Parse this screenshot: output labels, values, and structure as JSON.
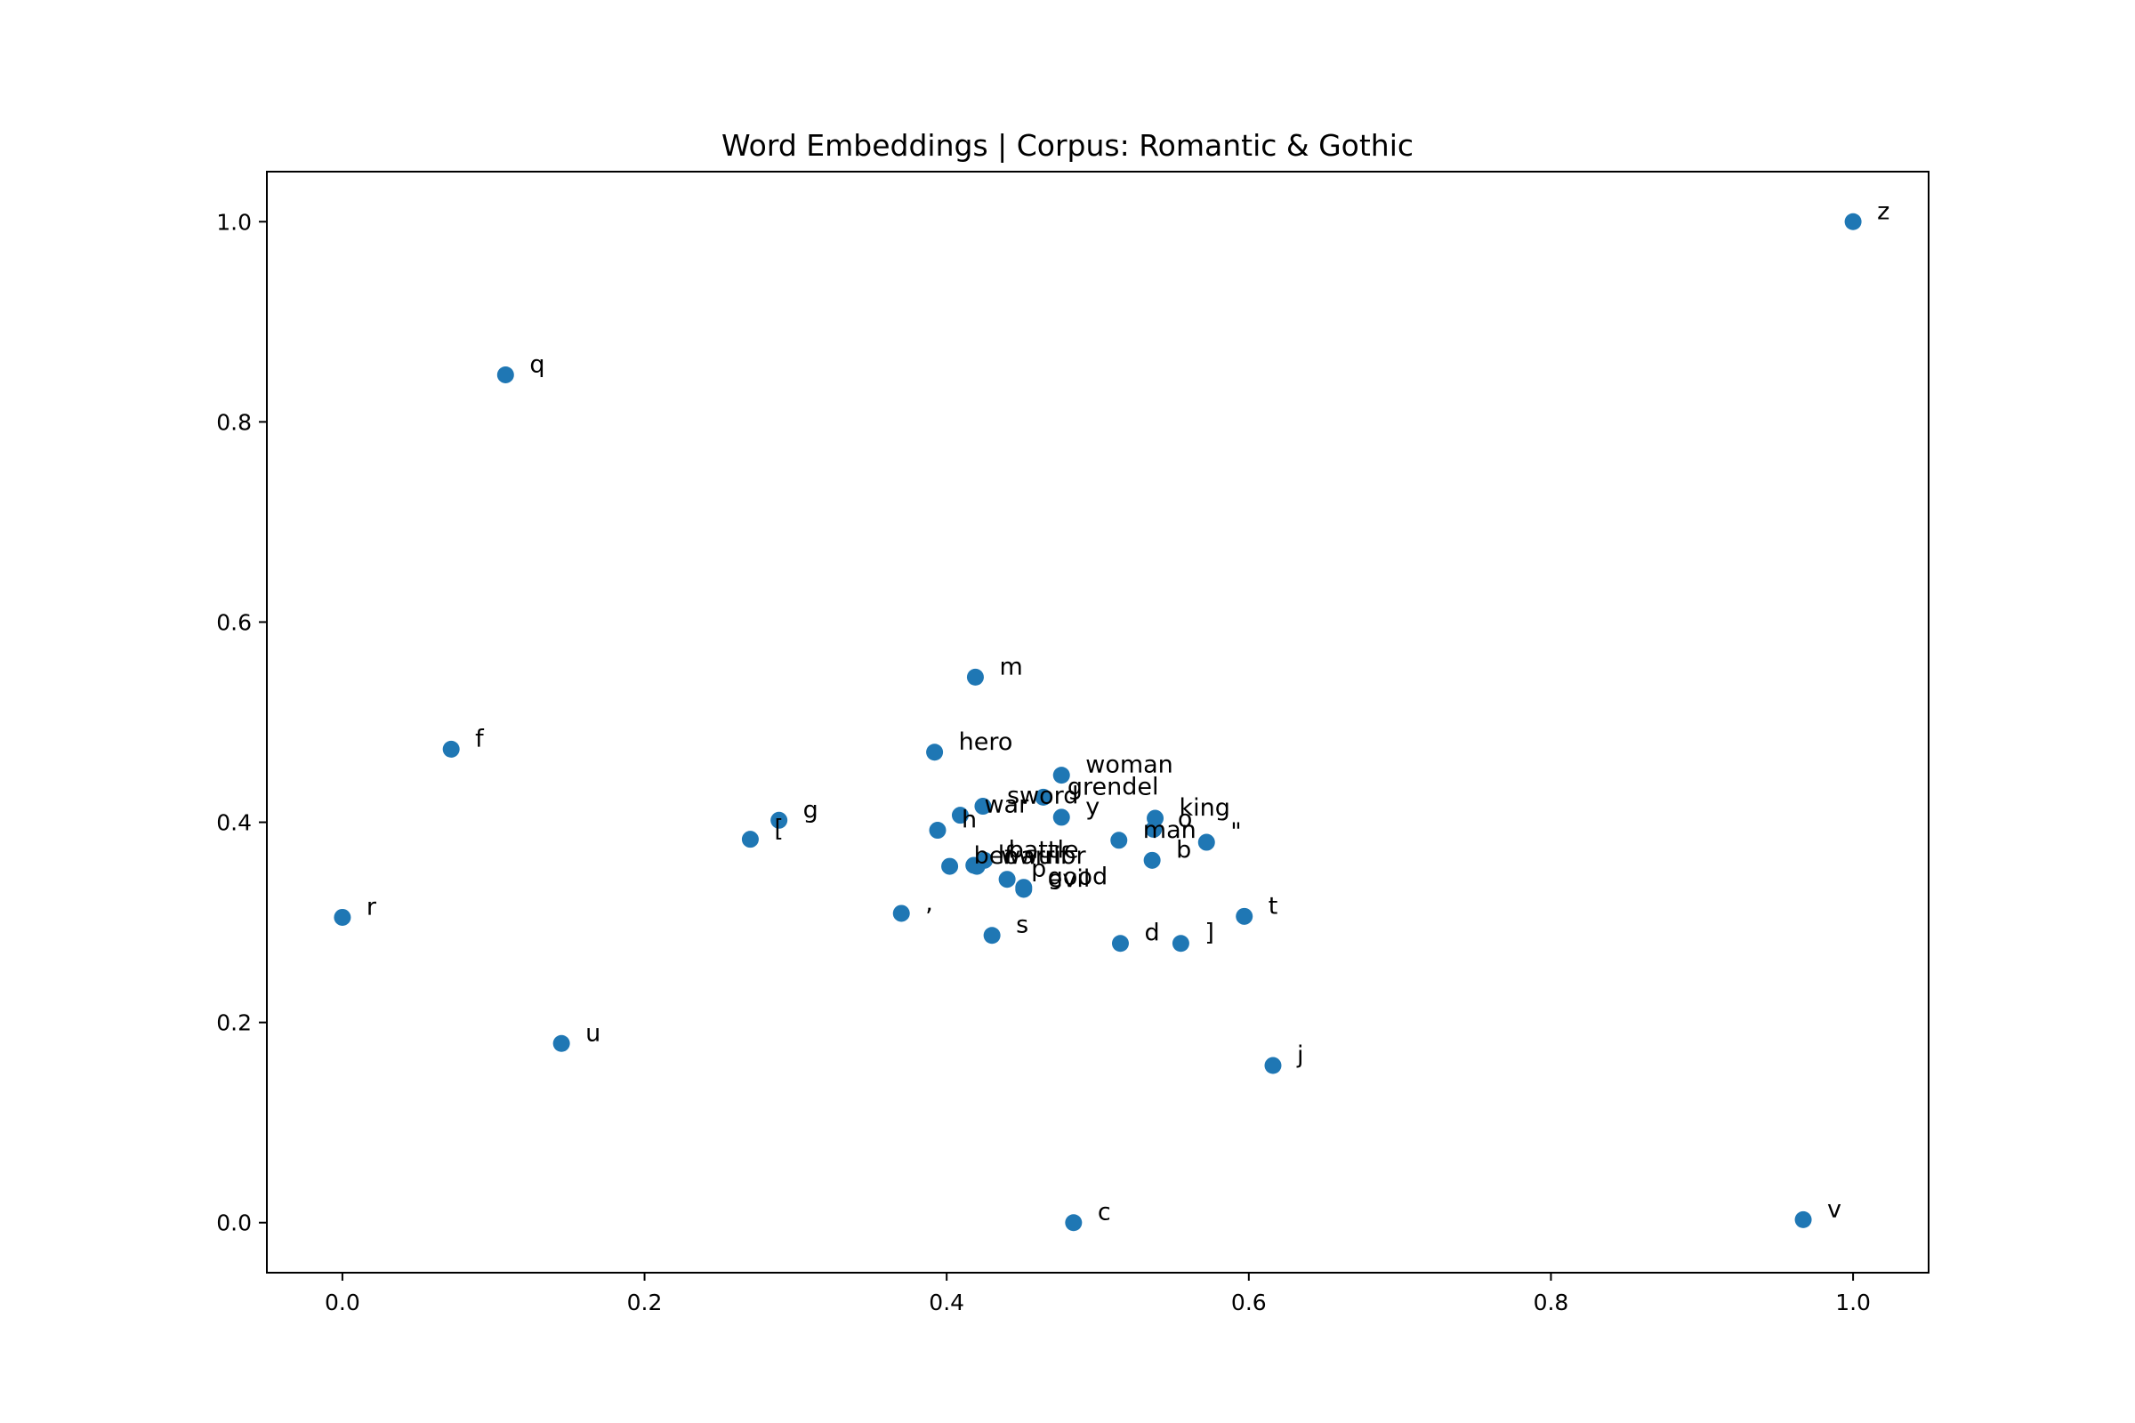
{
  "chart_data": {
    "type": "scatter",
    "title": "Word Embeddings | Corpus: Romantic & Gothic",
    "xlabel": "",
    "ylabel": "",
    "xlim": [
      -0.05,
      1.05
    ],
    "ylim": [
      -0.05,
      1.05
    ],
    "grid": false,
    "color": "#1f77b4",
    "x_ticks": [
      "0.0",
      "0.2",
      "0.4",
      "0.6",
      "0.8",
      "1.0"
    ],
    "y_ticks": [
      "0.0",
      "0.2",
      "0.4",
      "0.6",
      "0.8",
      "1.0"
    ],
    "points": [
      {
        "label": "z",
        "x": 1.0,
        "y": 1.0
      },
      {
        "label": "q",
        "x": 0.108,
        "y": 0.847
      },
      {
        "label": "m",
        "x": 0.419,
        "y": 0.545
      },
      {
        "label": "f",
        "x": 0.072,
        "y": 0.473
      },
      {
        "label": "hero",
        "x": 0.392,
        "y": 0.47
      },
      {
        "label": "woman",
        "x": 0.476,
        "y": 0.447
      },
      {
        "label": "sword",
        "x": 0.424,
        "y": 0.416
      },
      {
        "label": "grendel",
        "x": 0.464,
        "y": 0.425
      },
      {
        "label": "king",
        "x": 0.538,
        "y": 0.404
      },
      {
        "label": "o",
        "x": 0.537,
        "y": 0.393
      },
      {
        "label": "g",
        "x": 0.289,
        "y": 0.402
      },
      {
        "label": "h",
        "x": 0.394,
        "y": 0.392
      },
      {
        "label": "[",
        "x": 0.27,
        "y": 0.383
      },
      {
        "label": "war",
        "x": 0.409,
        "y": 0.407
      },
      {
        "label": "y",
        "x": 0.476,
        "y": 0.405
      },
      {
        "label": "man",
        "x": 0.514,
        "y": 0.382
      },
      {
        "label": "\"",
        "x": 0.572,
        "y": 0.38
      },
      {
        "label": "b",
        "x": 0.536,
        "y": 0.362
      },
      {
        "label": "beowulf",
        "x": 0.402,
        "y": 0.356
      },
      {
        "label": "lf",
        "x": 0.418,
        "y": 0.357
      },
      {
        "label": "battle",
        "x": 0.425,
        "y": 0.362
      },
      {
        "label": "p",
        "x": 0.44,
        "y": 0.343
      },
      {
        "label": "good",
        "x": 0.451,
        "y": 0.335
      },
      {
        "label": "r",
        "x": 0.0,
        "y": 0.305
      },
      {
        "label": ",",
        "x": 0.37,
        "y": 0.309
      },
      {
        "label": "warrior",
        "x": 0.42,
        "y": 0.356
      },
      {
        "label": "evil",
        "x": 0.451,
        "y": 0.333
      },
      {
        "label": "t",
        "x": 0.597,
        "y": 0.306
      },
      {
        "label": "s",
        "x": 0.43,
        "y": 0.287
      },
      {
        "label": "d",
        "x": 0.515,
        "y": 0.279
      },
      {
        "label": "]",
        "x": 0.555,
        "y": 0.279
      },
      {
        "label": "u",
        "x": 0.145,
        "y": 0.179
      },
      {
        "label": "j",
        "x": 0.616,
        "y": 0.157
      },
      {
        "label": "c",
        "x": 0.484,
        "y": 0.0
      },
      {
        "label": "v",
        "x": 0.967,
        "y": 0.003
      }
    ]
  }
}
